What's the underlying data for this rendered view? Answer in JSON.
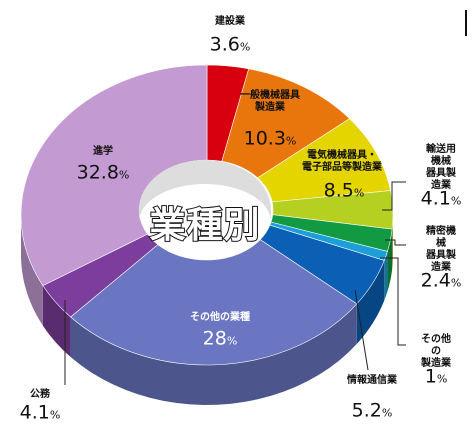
{
  "chart_data": {
    "type": "pie",
    "title": "業種別",
    "categories": [
      "建設業",
      "一般機械器具\n製造業",
      "電気機械器具・\n電子部品等製造業",
      "輸送用機械\n器具製造業",
      "精密機械\n器具製造業",
      "その他の\n製造業",
      "情報通信業",
      "その他の業種",
      "公務",
      "進学"
    ],
    "values": [
      3.6,
      10.3,
      8.5,
      4.1,
      2.4,
      1,
      5.2,
      28,
      4.1,
      32.8
    ],
    "value_labels": [
      "3.6%",
      "10.3%",
      "8.5%",
      "4.1%",
      "2.4%",
      "1%",
      "5.2%",
      "28%",
      "4.1%",
      "32.8%"
    ],
    "colors": [
      "#d8000f",
      "#e8760c",
      "#e4d400",
      "#b5d021",
      "#119a42",
      "#1c9fd8",
      "#0b60b6",
      "#6a76c2",
      "#7c3d9c",
      "#c39bd2"
    ]
  }
}
